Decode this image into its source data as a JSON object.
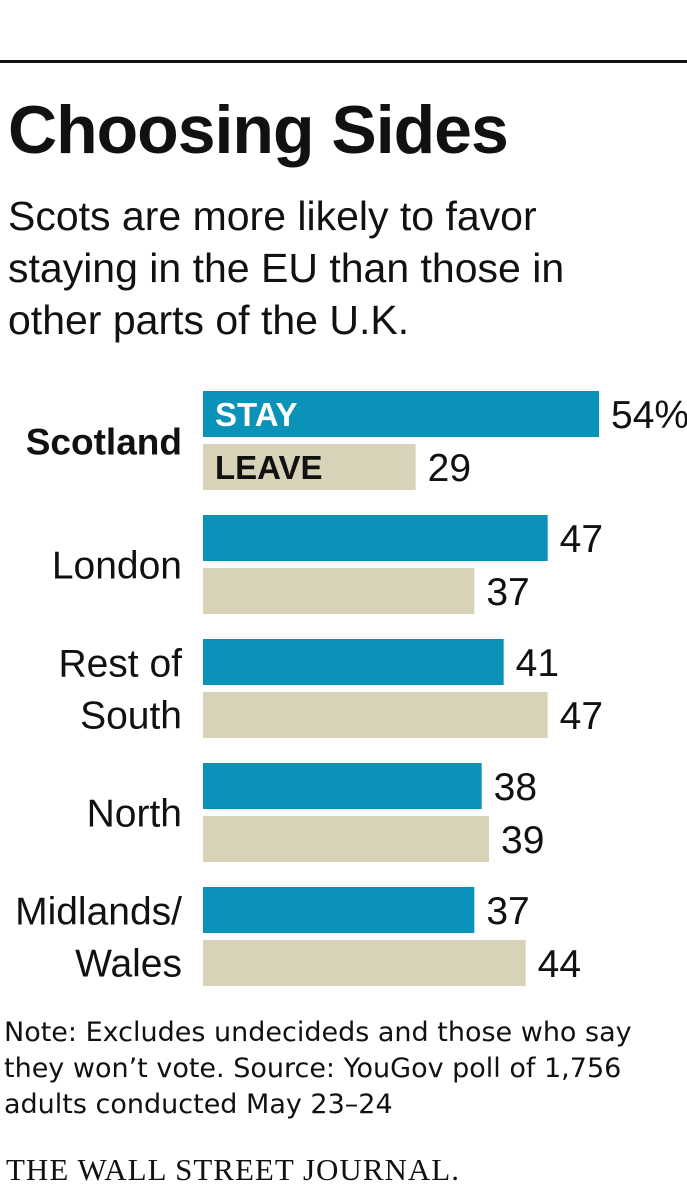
{
  "chart_data": {
    "type": "bar",
    "orientation": "horizontal",
    "title": "Choosing Sides",
    "subtitle": "Scots are more likely to favor staying in the EU than those in other parts of the U.K.",
    "categories": [
      {
        "lines": [
          "Scotland"
        ],
        "bold": true
      },
      {
        "lines": [
          "London"
        ],
        "bold": false
      },
      {
        "lines": [
          "Rest of",
          "South"
        ],
        "bold": false
      },
      {
        "lines": [
          "North"
        ],
        "bold": false
      },
      {
        "lines": [
          "Midlands/",
          "Wales"
        ],
        "bold": false
      }
    ],
    "series": [
      {
        "name": "STAY",
        "color": "#0a92b8",
        "values": [
          54,
          47,
          41,
          38,
          37
        ],
        "value_labels": [
          "54%",
          "47",
          "41",
          "38",
          "37"
        ]
      },
      {
        "name": "LEAVE",
        "color": "#d8d3b8",
        "values": [
          29,
          37,
          47,
          39,
          44
        ],
        "value_labels": [
          "29",
          "37",
          "47",
          "39",
          "44"
        ]
      }
    ],
    "xlim": [
      0,
      54
    ],
    "grid": false,
    "legend": "inline-first-group"
  },
  "note": "Note: Excludes undecideds and those who say they won’t vote.  Source: YouGov poll of 1,756 adults conducted May 23–24",
  "brand": "THE WALL STREET JOURNAL."
}
